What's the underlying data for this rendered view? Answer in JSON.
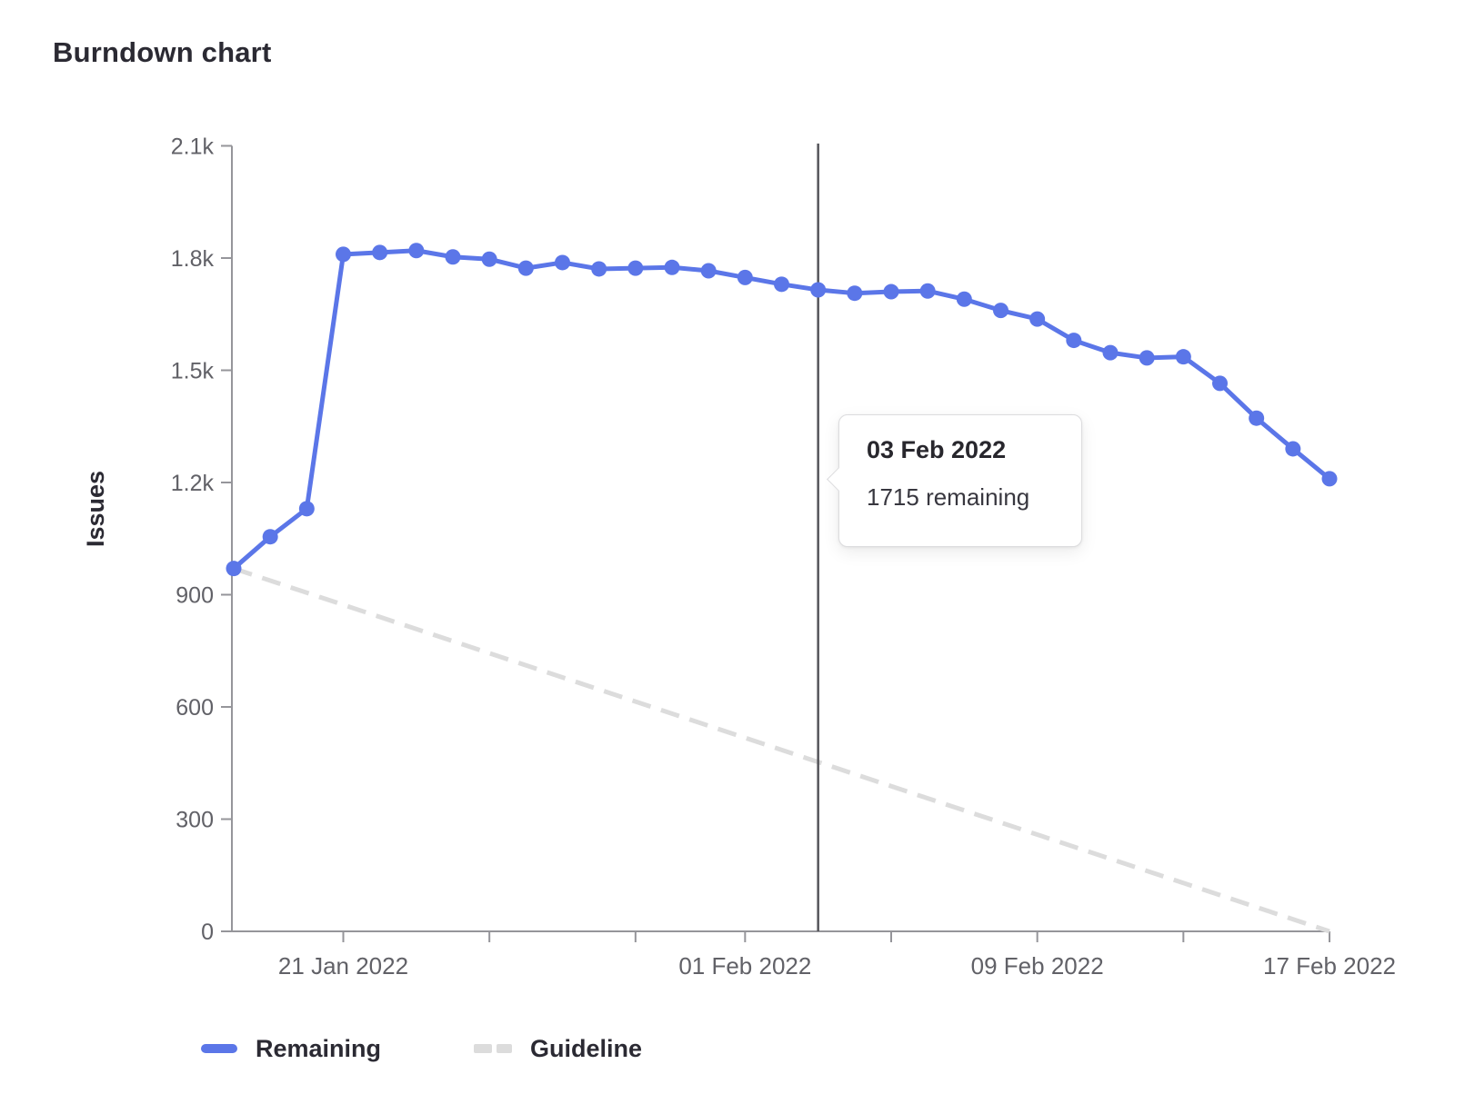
{
  "title": "Burndown chart",
  "tooltip": {
    "date": "03 Feb 2022",
    "body": "1715 remaining"
  },
  "legend": {
    "remaining_label": "Remaining",
    "guideline_label": "Guideline"
  },
  "colors": {
    "remaining": "#5b76e8",
    "guideline": "#dcdcdc",
    "axis": "#95959a",
    "tick_label": "#616167",
    "text_dark": "#2b2a33",
    "current_date_line": "#55555a",
    "tooltip_border": "#dcdcde"
  },
  "chart_data": {
    "type": "line",
    "title": "Burndown chart",
    "xlabel": "",
    "ylabel": "Issues",
    "ylim": [
      0,
      2100
    ],
    "grid": false,
    "legend_position": "bottom-left",
    "dates": [
      "18 Jan 2022",
      "19 Jan 2022",
      "20 Jan 2022",
      "21 Jan 2022",
      "22 Jan 2022",
      "23 Jan 2022",
      "24 Jan 2022",
      "25 Jan 2022",
      "26 Jan 2022",
      "27 Jan 2022",
      "28 Jan 2022",
      "29 Jan 2022",
      "30 Jan 2022",
      "31 Jan 2022",
      "01 Feb 2022",
      "02 Feb 2022",
      "03 Feb 2022",
      "04 Feb 2022",
      "05 Feb 2022",
      "06 Feb 2022",
      "07 Feb 2022",
      "08 Feb 2022",
      "09 Feb 2022",
      "10 Feb 2022",
      "11 Feb 2022",
      "12 Feb 2022",
      "13 Feb 2022",
      "14 Feb 2022",
      "15 Feb 2022",
      "16 Feb 2022",
      "17 Feb 2022"
    ],
    "series": [
      {
        "name": "Remaining",
        "style": "solid",
        "show_points": true,
        "values": [
          970,
          1055,
          1130,
          1810,
          1815,
          1820,
          1803,
          1797,
          1773,
          1788,
          1771,
          1773,
          1775,
          1766,
          1748,
          1730,
          1715,
          1706,
          1710,
          1712,
          1690,
          1660,
          1637,
          1580,
          1547,
          1533,
          1536,
          1465,
          1372,
          1290,
          1210
        ]
      },
      {
        "name": "Guideline",
        "style": "dashed",
        "show_points": false,
        "points": [
          {
            "day": 0,
            "value": 970
          },
          {
            "day": 30,
            "value": 0
          }
        ]
      }
    ],
    "y_ticks": [
      {
        "value": 0,
        "label": "0"
      },
      {
        "value": 300,
        "label": "300"
      },
      {
        "value": 600,
        "label": "600"
      },
      {
        "value": 900,
        "label": "900"
      },
      {
        "value": 1200,
        "label": "1.2k"
      },
      {
        "value": 1500,
        "label": "1.5k"
      },
      {
        "value": 1800,
        "label": "1.8k"
      },
      {
        "value": 2100,
        "label": "2.1k"
      }
    ],
    "x_ticks": [
      {
        "day": 3,
        "label": "21 Jan 2022"
      },
      {
        "day": 14,
        "label": "01 Feb 2022"
      },
      {
        "day": 22,
        "label": "09 Feb 2022"
      },
      {
        "day": 30,
        "label": "17 Feb 2022"
      }
    ],
    "x_minor_tick_days": [
      7,
      11,
      18,
      26
    ],
    "current_marker": {
      "day": 16,
      "date": "03 Feb 2022",
      "value": 1715
    }
  }
}
